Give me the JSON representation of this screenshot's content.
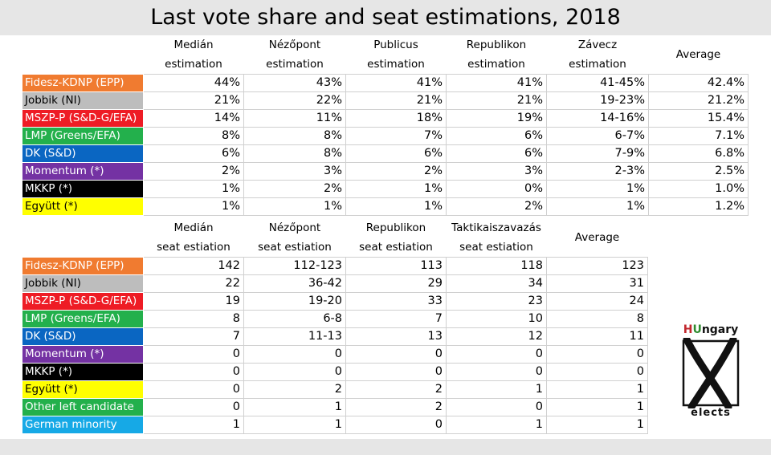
{
  "title": "Last vote share and seat estimations, 2018",
  "colors": {
    "Fidesz-KDNP (EPP)": {
      "bg": "#f07b30",
      "fg": "#ffffff"
    },
    "Jobbik (NI)": {
      "bg": "#bdbdbd",
      "fg": "#000000"
    },
    "MSZP-P (S&D-G/EFA)": {
      "bg": "#ee1c25",
      "fg": "#ffffff"
    },
    "LMP (Greens/EFA)": {
      "bg": "#23b04c",
      "fg": "#ffffff"
    },
    "DK (S&D)": {
      "bg": "#0a66c2",
      "fg": "#ffffff"
    },
    "Momentum (*)": {
      "bg": "#7432a3",
      "fg": "#ffffff"
    },
    "MKKP (*)": {
      "bg": "#000000",
      "fg": "#ffffff"
    },
    "Együtt (*)": {
      "bg": "#ffff00",
      "fg": "#000000"
    },
    "Other left candidate": {
      "bg": "#23b04c",
      "fg": "#ffffff"
    },
    "German minority": {
      "bg": "#16a9e6",
      "fg": "#ffffff"
    }
  },
  "vote_table": {
    "headers": [
      [
        "Medián",
        "estimation"
      ],
      [
        "Nézőpont",
        "estimation"
      ],
      [
        "Publicus",
        "estimation"
      ],
      [
        "Republikon",
        "estimation"
      ],
      [
        "Závecz",
        "estimation"
      ],
      [
        "Average"
      ]
    ],
    "rows": [
      {
        "party": "Fidesz-KDNP (EPP)",
        "values": [
          "44%",
          "43%",
          "41%",
          "41%",
          "41-45%",
          "42.4%"
        ]
      },
      {
        "party": "Jobbik (NI)",
        "values": [
          "21%",
          "22%",
          "21%",
          "21%",
          "19-23%",
          "21.2%"
        ]
      },
      {
        "party": "MSZP-P (S&D-G/EFA)",
        "values": [
          "14%",
          "11%",
          "18%",
          "19%",
          "14-16%",
          "15.4%"
        ]
      },
      {
        "party": "LMP (Greens/EFA)",
        "values": [
          "8%",
          "8%",
          "7%",
          "6%",
          "6-7%",
          "7.1%"
        ]
      },
      {
        "party": "DK (S&D)",
        "values": [
          "6%",
          "8%",
          "6%",
          "6%",
          "7-9%",
          "6.8%"
        ]
      },
      {
        "party": "Momentum (*)",
        "values": [
          "2%",
          "3%",
          "2%",
          "3%",
          "2-3%",
          "2.5%"
        ]
      },
      {
        "party": "MKKP (*)",
        "values": [
          "1%",
          "2%",
          "1%",
          "0%",
          "1%",
          "1.0%"
        ]
      },
      {
        "party": "Együtt (*)",
        "values": [
          "1%",
          "1%",
          "1%",
          "2%",
          "1%",
          "1.2%"
        ]
      }
    ]
  },
  "seat_table": {
    "headers": [
      [
        "Medián",
        "seat estiation"
      ],
      [
        "Nézőpont",
        "seat estiation"
      ],
      [
        "Republikon",
        "seat estiation"
      ],
      [
        "Taktikaiszavazás",
        "seat estiation"
      ],
      [
        "Average"
      ]
    ],
    "rows": [
      {
        "party": "Fidesz-KDNP (EPP)",
        "values": [
          "142",
          "112-123",
          "113",
          "118",
          "123"
        ]
      },
      {
        "party": "Jobbik (NI)",
        "values": [
          "22",
          "36-42",
          "29",
          "34",
          "31"
        ]
      },
      {
        "party": "MSZP-P (S&D-G/EFA)",
        "values": [
          "19",
          "19-20",
          "33",
          "23",
          "24"
        ]
      },
      {
        "party": "LMP (Greens/EFA)",
        "values": [
          "8",
          "6-8",
          "7",
          "10",
          "8"
        ]
      },
      {
        "party": "DK (S&D)",
        "values": [
          "7",
          "11-13",
          "13",
          "12",
          "11"
        ]
      },
      {
        "party": "Momentum (*)",
        "values": [
          "0",
          "0",
          "0",
          "0",
          "0"
        ]
      },
      {
        "party": "MKKP (*)",
        "values": [
          "0",
          "0",
          "0",
          "0",
          "0"
        ]
      },
      {
        "party": "Együtt (*)",
        "values": [
          "0",
          "2",
          "2",
          "1",
          "1"
        ]
      },
      {
        "party": "Other left candidate",
        "values": [
          "0",
          "1",
          "2",
          "0",
          "1"
        ]
      },
      {
        "party": "German minority",
        "values": [
          "1",
          "1",
          "0",
          "1",
          "1"
        ]
      }
    ]
  },
  "logo": {
    "h": "H",
    "u": "U",
    "rest": "ngary",
    "bottom": "elects"
  }
}
